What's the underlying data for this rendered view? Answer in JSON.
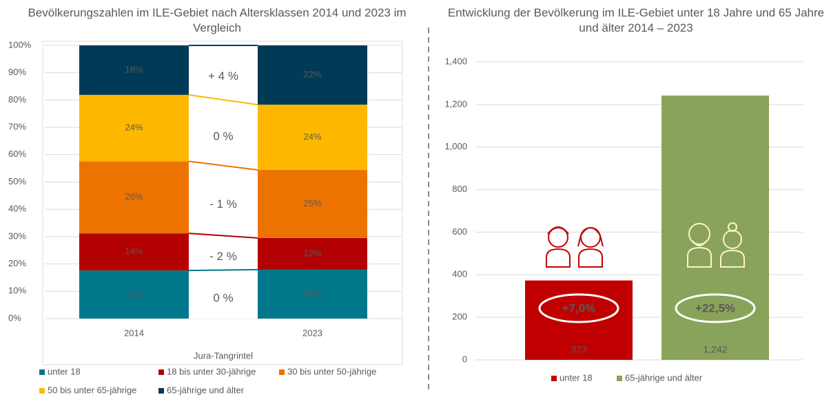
{
  "chart_data": [
    {
      "type": "stacked_bar_percent",
      "title": "Bevölkerungszahlen im ILE-Gebiet nach Altersklassen 2014 und 2023 im Vergleich",
      "categories": [
        "2014",
        "2023"
      ],
      "x_label": "Jura-Tangrintel",
      "series": [
        {
          "name": "unter 18",
          "color": "#00778b",
          "values": [
            17.6,
            17.9
          ],
          "value_labels": [
            "18%",
            "18%"
          ]
        },
        {
          "name": "18 bis unter 30-jährige",
          "color": "#b30000",
          "values": [
            13.6,
            11.6
          ],
          "value_labels": [
            "14%",
            "12%"
          ]
        },
        {
          "name": "30 bis unter 50-jährige",
          "color": "#ed7300",
          "values": [
            26.4,
            24.9
          ],
          "value_labels": [
            "26%",
            "25%"
          ]
        },
        {
          "name": "50 bis unter 65-jährige",
          "color": "#ffb800",
          "values": [
            24.3,
            23.9
          ],
          "value_labels": [
            "24%",
            "24%"
          ]
        },
        {
          "name": "65-jährige und älter",
          "color": "#003a57",
          "values": [
            18.1,
            21.7
          ],
          "value_labels": [
            "18%",
            "22%"
          ]
        }
      ],
      "annotations": [
        {
          "text": "0 %",
          "color": "#8aa35a"
        },
        {
          "text": "- 2 %",
          "color": "#c00000"
        },
        {
          "text": "- 1 %",
          "color": "#c00000"
        },
        {
          "text": "0 %",
          "color": "#8aa35a"
        },
        {
          "text": "+ 4 %",
          "color": "#8aa35a"
        }
      ],
      "ylim": [
        0,
        100
      ],
      "yticks": [
        {
          "value": 0,
          "label": "0%"
        },
        {
          "value": 10,
          "label": "10%"
        },
        {
          "value": 20,
          "label": "20%"
        },
        {
          "value": 30,
          "label": "30%"
        },
        {
          "value": 40,
          "label": "40%"
        },
        {
          "value": 50,
          "label": "50%"
        },
        {
          "value": 60,
          "label": "60%"
        },
        {
          "value": 70,
          "label": "70%"
        },
        {
          "value": 80,
          "label": "80%"
        },
        {
          "value": 90,
          "label": "90%"
        },
        {
          "value": 100,
          "label": "100%"
        }
      ],
      "grid": true,
      "legend": "bottom"
    },
    {
      "type": "bar",
      "title": "Entwicklung der Bevölkerung im ILE-Gebiet unter 18 Jahre und 65 Jahre und älter 2014 – 2023",
      "series": [
        {
          "name": "unter 18",
          "color": "#c00000",
          "values": [
            373
          ],
          "value_labels": [
            "373"
          ]
        },
        {
          "name": "65-jährige und älter",
          "color": "#8aa35a",
          "values": [
            1242
          ],
          "value_labels": [
            "1,242"
          ]
        }
      ],
      "annotations": [
        "+7,0%",
        "+22,5%"
      ],
      "ylim": [
        0,
        1400
      ],
      "yticks": [
        0,
        200,
        400,
        600,
        800,
        {
          "value": 1000,
          "label": "1,000"
        },
        {
          "value": 1200,
          "label": "1,200"
        },
        {
          "value": 1400,
          "label": "1,400"
        }
      ],
      "grid": true,
      "legend": "bottom"
    }
  ]
}
